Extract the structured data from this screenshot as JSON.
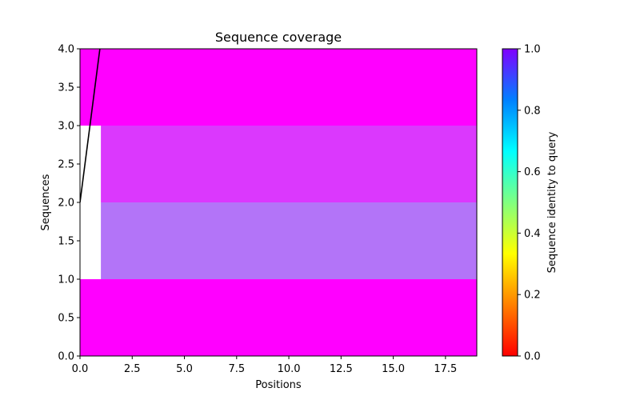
{
  "chart_data": {
    "type": "heatmap",
    "title": "Sequence coverage",
    "xlabel": "Positions",
    "ylabel": "Sequences",
    "xlim": [
      0,
      19
    ],
    "ylim": [
      0,
      4
    ],
    "xticks": [
      0,
      2.5,
      5,
      7.5,
      10,
      12.5,
      15,
      17.5
    ],
    "xtick_labels": [
      "0.0",
      "2.5",
      "5.0",
      "7.5",
      "10.0",
      "12.5",
      "15.0",
      "17.5"
    ],
    "yticks": [
      0,
      0.5,
      1,
      1.5,
      2,
      2.5,
      3,
      3.5,
      4
    ],
    "ytick_labels": [
      "0.0",
      "0.5",
      "1.0",
      "1.5",
      "2.0",
      "2.5",
      "3.0",
      "3.5",
      "4.0"
    ],
    "grid": false,
    "cells": [
      {
        "x0": 0,
        "x1": 19,
        "y0": 0,
        "y1": 1,
        "identity": 1.0
      },
      {
        "x0": 1,
        "x1": 19,
        "y0": 1,
        "y1": 2,
        "identity": 0.85
      },
      {
        "x0": 1,
        "x1": 19,
        "y0": 2,
        "y1": 3,
        "identity": 0.93
      },
      {
        "x0": 0,
        "x1": 19,
        "y0": 3,
        "y1": 4,
        "identity": 1.0
      }
    ],
    "coverage_line": {
      "x": [
        0,
        1
      ],
      "y": [
        2,
        4.1
      ],
      "color": "#000000"
    },
    "colorbar": {
      "label": "Sequence identity to query",
      "range": [
        0,
        1
      ],
      "ticks": [
        0,
        0.2,
        0.4,
        0.6,
        0.8,
        1.0
      ],
      "tick_labels": [
        "0.0",
        "0.2",
        "0.4",
        "0.6",
        "0.8",
        "1.0"
      ],
      "colormap": "rainbow_r"
    }
  }
}
